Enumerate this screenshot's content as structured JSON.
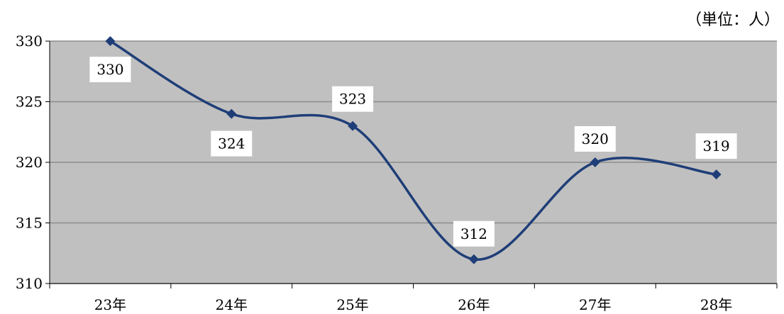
{
  "chart_data": {
    "type": "line",
    "unit_label": "（単位：人）",
    "categories": [
      "23年",
      "24年",
      "25年",
      "26年",
      "27年",
      "28年"
    ],
    "series": [
      {
        "values": [
          330,
          324,
          323,
          312,
          320,
          319
        ]
      }
    ],
    "data_labels": [
      "330",
      "324",
      "323",
      "312",
      "320",
      "319"
    ],
    "y_ticks": [
      "310",
      "315",
      "320",
      "325",
      "330"
    ],
    "ylim": [
      310,
      330
    ],
    "smooth": true,
    "grid": true,
    "legend": "none",
    "colors": {
      "line": "#1f3e78",
      "plot_bg": "#c0c0c0",
      "grid": "#8c8c8c"
    }
  }
}
